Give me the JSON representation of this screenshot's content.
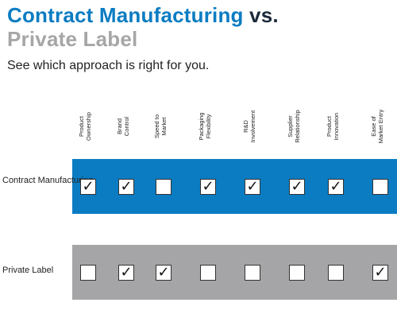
{
  "title": {
    "part1": "Contract Manufacturing",
    "part2": " vs.",
    "part3": "Private Label"
  },
  "subtitle": "See which approach is right for you.",
  "columns": [
    "Product Ownership",
    "Brand Control",
    "Speed to Market",
    "Packaging Flexibility",
    "R&D Involvement",
    "Supplier Relationship",
    "Product Innovation",
    "Ease of Market Entry"
  ],
  "rows": [
    {
      "label": "Contract Manufacturing",
      "checks": [
        true,
        true,
        false,
        true,
        true,
        true,
        true,
        false
      ]
    },
    {
      "label": "Private Label",
      "checks": [
        false,
        true,
        true,
        false,
        false,
        false,
        false,
        true
      ]
    }
  ],
  "colors": {
    "blue": "#0b7cc2",
    "gray": "#a5a5a7",
    "title_dark": "#1b2a3a",
    "title_gray": "#a6a6a6"
  }
}
